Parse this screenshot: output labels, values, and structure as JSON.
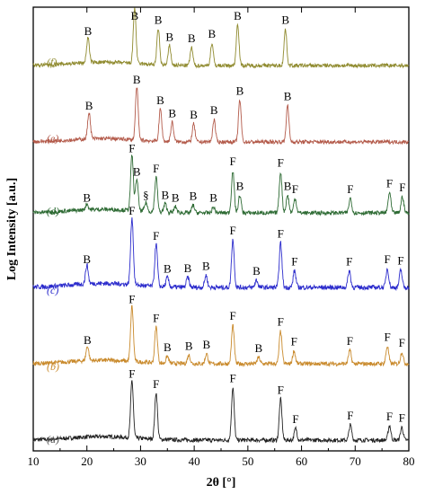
{
  "chart_data": {
    "type": "line",
    "xlabel": "2θ [°]",
    "ylabel": "Log Intensity [a.u.]",
    "xlim": [
      10,
      80
    ],
    "xticks": [
      10,
      20,
      30,
      40,
      50,
      60,
      70,
      80
    ],
    "yticks_shown": false,
    "grid": false,
    "legend": "none",
    "series": [
      {
        "name": "(a)",
        "color": "#222222",
        "label_color": "#555555",
        "peaks": [
          {
            "x": 28.4,
            "label": "F",
            "h": 0.98
          },
          {
            "x": 32.9,
            "label": "F",
            "h": 0.8
          },
          {
            "x": 47.2,
            "label": "F",
            "h": 0.9
          },
          {
            "x": 56.1,
            "label": "F",
            "h": 0.7
          },
          {
            "x": 58.9,
            "label": "F",
            "h": 0.2
          },
          {
            "x": 69.1,
            "label": "F",
            "h": 0.26
          },
          {
            "x": 76.4,
            "label": "F",
            "h": 0.25
          },
          {
            "x": 78.7,
            "label": "F",
            "h": 0.22
          }
        ]
      },
      {
        "name": "(b)",
        "color": "#c98a2c",
        "label_color": "#c98a2c",
        "peaks": [
          {
            "x": 20.1,
            "label": "B",
            "h": 0.25
          },
          {
            "x": 28.4,
            "label": "F",
            "h": 0.95
          },
          {
            "x": 32.9,
            "label": "F",
            "h": 0.62
          },
          {
            "x": 35.0,
            "label": "B",
            "h": 0.12
          },
          {
            "x": 39.0,
            "label": "B",
            "h": 0.15
          },
          {
            "x": 42.3,
            "label": "B",
            "h": 0.17
          },
          {
            "x": 47.2,
            "label": "F",
            "h": 0.66
          },
          {
            "x": 52.0,
            "label": "B",
            "h": 0.11
          },
          {
            "x": 56.1,
            "label": "F",
            "h": 0.56
          },
          {
            "x": 58.6,
            "label": "F",
            "h": 0.22
          },
          {
            "x": 69.0,
            "label": "F",
            "h": 0.23
          },
          {
            "x": 76.0,
            "label": "F",
            "h": 0.3
          },
          {
            "x": 78.7,
            "label": "F",
            "h": 0.2
          }
        ]
      },
      {
        "name": "(c)",
        "color": "#2b2bcc",
        "label_color": "#2b2bcc",
        "peaks": [
          {
            "x": 20.0,
            "label": "B",
            "h": 0.28
          },
          {
            "x": 28.4,
            "label": "F",
            "h": 1.0
          },
          {
            "x": 32.9,
            "label": "F",
            "h": 0.63
          },
          {
            "x": 35.0,
            "label": "B",
            "h": 0.14
          },
          {
            "x": 38.8,
            "label": "B",
            "h": 0.15
          },
          {
            "x": 42.2,
            "label": "B",
            "h": 0.18
          },
          {
            "x": 47.2,
            "label": "F",
            "h": 0.71
          },
          {
            "x": 51.6,
            "label": "B",
            "h": 0.11
          },
          {
            "x": 56.1,
            "label": "F",
            "h": 0.66
          },
          {
            "x": 58.7,
            "label": "F",
            "h": 0.25
          },
          {
            "x": 68.9,
            "label": "F",
            "h": 0.25
          },
          {
            "x": 76.0,
            "label": "F",
            "h": 0.28
          },
          {
            "x": 78.5,
            "label": "F",
            "h": 0.26
          }
        ]
      },
      {
        "name": "(d)",
        "color": "#2e6b34",
        "label_color": "#2e6b34",
        "peaks": [
          {
            "x": 20.0,
            "label": "B",
            "h": 0.1
          },
          {
            "x": 28.4,
            "label": "F",
            "h": 0.95
          },
          {
            "x": 29.3,
            "label": "B",
            "h": 0.55
          },
          {
            "x": 31.0,
            "label": "§",
            "h": 0.15
          },
          {
            "x": 32.9,
            "label": "F",
            "h": 0.6
          },
          {
            "x": 34.6,
            "label": "B",
            "h": 0.15
          },
          {
            "x": 36.5,
            "label": "B",
            "h": 0.1
          },
          {
            "x": 39.8,
            "label": "B",
            "h": 0.13
          },
          {
            "x": 43.6,
            "label": "B",
            "h": 0.1
          },
          {
            "x": 47.2,
            "label": "F",
            "h": 0.72
          },
          {
            "x": 48.5,
            "label": "B",
            "h": 0.3
          },
          {
            "x": 56.1,
            "label": "F",
            "h": 0.7
          },
          {
            "x": 57.4,
            "label": "B",
            "h": 0.3
          },
          {
            "x": 58.8,
            "label": "F",
            "h": 0.25
          },
          {
            "x": 69.1,
            "label": "F",
            "h": 0.25
          },
          {
            "x": 76.4,
            "label": "F",
            "h": 0.35
          },
          {
            "x": 78.8,
            "label": "F",
            "h": 0.28
          }
        ]
      },
      {
        "name": "(e)",
        "color": "#b35a4a",
        "label_color": "#b35a4a",
        "peaks": [
          {
            "x": 20.4,
            "label": "B",
            "h": 0.48
          },
          {
            "x": 29.3,
            "label": "B",
            "h": 0.95
          },
          {
            "x": 33.7,
            "label": "B",
            "h": 0.58
          },
          {
            "x": 35.9,
            "label": "B",
            "h": 0.35
          },
          {
            "x": 39.9,
            "label": "B",
            "h": 0.32
          },
          {
            "x": 43.7,
            "label": "B",
            "h": 0.4
          },
          {
            "x": 48.5,
            "label": "B",
            "h": 0.75
          },
          {
            "x": 57.4,
            "label": "B",
            "h": 0.65
          }
        ]
      },
      {
        "name": "(f)",
        "color": "#8f8a2e",
        "label_color": "#8f8a2e",
        "peaks": [
          {
            "x": 20.2,
            "label": "B",
            "h": 0.45
          },
          {
            "x": 28.9,
            "label": "B",
            "h": 1.0
          },
          {
            "x": 33.3,
            "label": "B",
            "h": 0.65
          },
          {
            "x": 35.4,
            "label": "B",
            "h": 0.35
          },
          {
            "x": 39.5,
            "label": "B",
            "h": 0.32
          },
          {
            "x": 43.3,
            "label": "B",
            "h": 0.4
          },
          {
            "x": 48.1,
            "label": "B",
            "h": 0.75
          },
          {
            "x": 57.0,
            "label": "B",
            "h": 0.65
          }
        ]
      }
    ]
  }
}
